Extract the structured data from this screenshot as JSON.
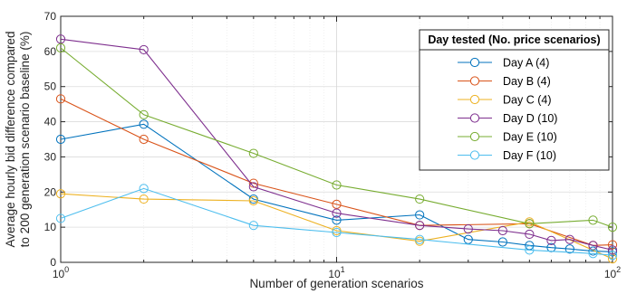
{
  "chart_data": {
    "type": "line",
    "xscale": "log",
    "xlim": [
      1,
      100
    ],
    "ylim": [
      0,
      70
    ],
    "grid": true,
    "xlabel": "Number of generation scenarios",
    "ylabel_lines": [
      "Average hourly bid difference compared",
      "to 200 generation scenario baseline (%)"
    ],
    "x_ticks": [
      1,
      10,
      100
    ],
    "x_tick_labels": [
      {
        "base": "10",
        "exp": "0"
      },
      {
        "base": "10",
        "exp": "1"
      },
      {
        "base": "10",
        "exp": "2"
      }
    ],
    "y_ticks": [
      0,
      10,
      20,
      30,
      40,
      50,
      60,
      70
    ],
    "y_tick_labels": [
      "0",
      "10",
      "20",
      "30",
      "40",
      "50",
      "60",
      "70"
    ],
    "legend_title": "Day tested (No. price scenarios)",
    "legend_position": "top-right",
    "series": [
      {
        "name": "Day A (4)",
        "color": "#0072BD",
        "x": [
          1,
          2,
          5,
          10,
          20,
          30,
          40,
          50,
          60,
          70,
          85,
          100
        ],
        "y": [
          35,
          39.3,
          18,
          12,
          13.5,
          6.5,
          5.8,
          4.8,
          4.2,
          3.8,
          3.2,
          3
        ]
      },
      {
        "name": "Day B (4)",
        "color": "#D95319",
        "x": [
          1,
          2,
          5,
          10,
          20,
          50,
          85,
          100
        ],
        "y": [
          46.5,
          35,
          22.5,
          16.5,
          10.5,
          11,
          4.8,
          5
        ]
      },
      {
        "name": "Day C (4)",
        "color": "#EDB120",
        "x": [
          1,
          2,
          5,
          10,
          20,
          50,
          100
        ],
        "y": [
          19.5,
          18,
          17.5,
          9,
          6,
          11.5,
          1
        ]
      },
      {
        "name": "Day D (10)",
        "color": "#7E2F8E",
        "x": [
          1,
          2,
          5,
          10,
          20,
          30,
          40,
          50,
          60,
          70,
          85,
          100
        ],
        "y": [
          63.5,
          60.5,
          21.5,
          14,
          10.5,
          9.5,
          9,
          8,
          6.2,
          6.5,
          4.8,
          3.5
        ]
      },
      {
        "name": "Day E (10)",
        "color": "#77AC30",
        "x": [
          1,
          2,
          5,
          10,
          20,
          50,
          85,
          100
        ],
        "y": [
          61,
          42,
          31,
          22,
          18,
          11,
          12,
          10
        ]
      },
      {
        "name": "Day F (10)",
        "color": "#4DBEEE",
        "x": [
          1,
          2,
          5,
          10,
          20,
          50,
          85,
          100
        ],
        "y": [
          12.5,
          21,
          10.5,
          8.5,
          6.5,
          3.5,
          2.5,
          2
        ]
      }
    ]
  }
}
